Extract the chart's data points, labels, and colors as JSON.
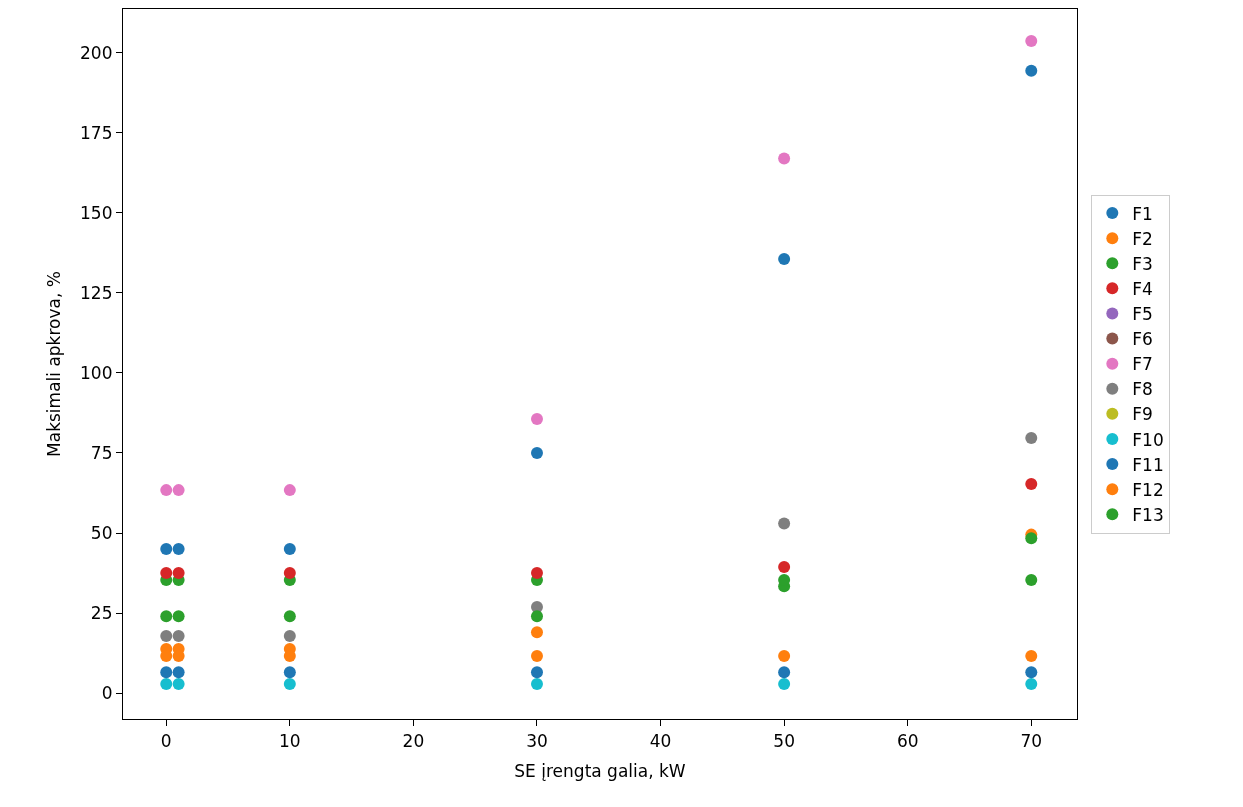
{
  "chart_data": {
    "type": "scatter",
    "xlabel": "SE įrengta galia, kW",
    "ylabel": "Maksimali apkrova, %",
    "x": [
      0,
      1,
      10,
      30,
      50,
      70
    ],
    "series": [
      {
        "name": "F1",
        "color": "#1f77b4",
        "values": [
          45,
          45,
          45,
          75,
          135.6,
          194.4
        ]
      },
      {
        "name": "F2",
        "color": "#ff7f0e",
        "values": [
          13.8,
          13.8,
          13.8,
          19,
          null,
          49.5
        ]
      },
      {
        "name": "F3",
        "color": "#2ca02c",
        "values": [
          35.3,
          35.3,
          35.3,
          35.3,
          33.4,
          48.4
        ]
      },
      {
        "name": "F4",
        "color": "#d62728",
        "values": [
          37.5,
          37.5,
          37.5,
          37.5,
          39.4,
          65.3
        ]
      },
      {
        "name": "F5",
        "color": "#9467bd",
        "values": [
          null,
          null,
          null,
          null,
          null,
          null
        ]
      },
      {
        "name": "F6",
        "color": "#8c564b",
        "values": [
          null,
          null,
          null,
          null,
          null,
          null
        ]
      },
      {
        "name": "F7",
        "color": "#e377c2",
        "values": [
          63.4,
          63.4,
          63.4,
          85.6,
          167,
          203.7
        ]
      },
      {
        "name": "F8",
        "color": "#7f7f7f",
        "values": [
          17.8,
          17.8,
          17.8,
          26.9,
          53,
          79.7
        ]
      },
      {
        "name": "F9",
        "color": "#bcbd22",
        "values": [
          null,
          null,
          null,
          null,
          null,
          null
        ]
      },
      {
        "name": "F10",
        "color": "#17becf",
        "values": [
          2.8,
          2.8,
          2.8,
          2.8,
          2.8,
          2.8
        ]
      },
      {
        "name": "F11",
        "color": "#1f77b4",
        "values": [
          6.5,
          6.5,
          6.5,
          6.5,
          6.5,
          6.5
        ]
      },
      {
        "name": "F12",
        "color": "#ff7f0e",
        "values": [
          11.6,
          11.6,
          11.6,
          11.6,
          11.6,
          11.6
        ]
      },
      {
        "name": "F13",
        "color": "#2ca02c",
        "values": [
          24,
          24,
          24,
          24,
          35.3,
          35.3
        ]
      }
    ],
    "xlim": [
      -3.5,
      73.7
    ],
    "xticks": [
      0,
      10,
      20,
      30,
      40,
      50,
      60,
      70
    ],
    "ylim": [
      -8.1,
      213.7
    ],
    "yticks": [
      0,
      25,
      50,
      75,
      100,
      125,
      150,
      175,
      200
    ],
    "legend": "right",
    "marker": "circle"
  }
}
